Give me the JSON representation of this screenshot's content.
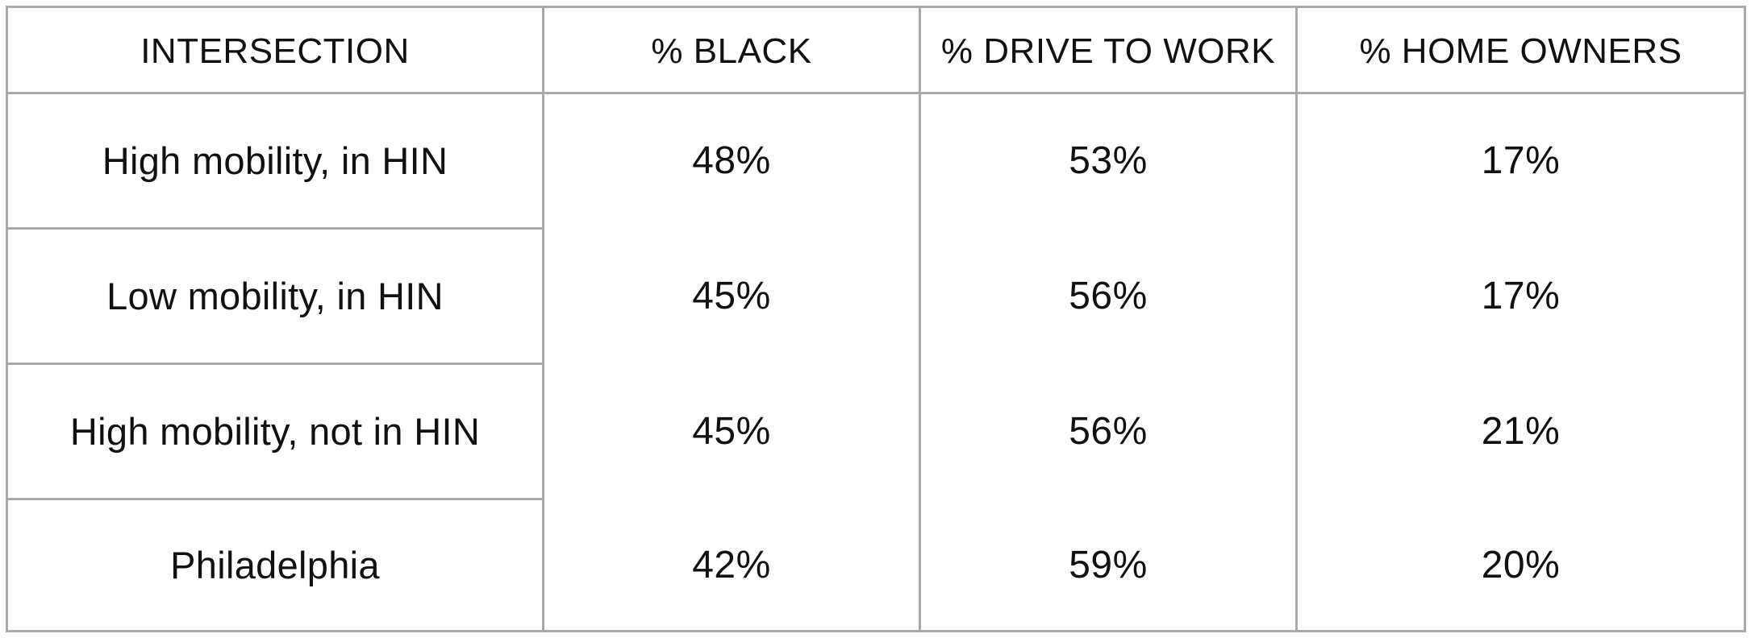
{
  "table": {
    "headers": [
      "INTERSECTION",
      "% BLACK",
      "% DRIVE TO WORK",
      "% HOME OWNERS"
    ],
    "rows": [
      {
        "label": "High mobility, in HIN",
        "black": "48%",
        "drive": "53%",
        "owners": "17%"
      },
      {
        "label": "Low mobility, in HIN",
        "black": "45%",
        "drive": "56%",
        "owners": "17%"
      },
      {
        "label": "High mobility, not in HIN",
        "black": "45%",
        "drive": "56%",
        "owners": "21%"
      },
      {
        "label": "Philadelphia",
        "black": "42%",
        "drive": "59%",
        "owners": "20%"
      }
    ]
  }
}
